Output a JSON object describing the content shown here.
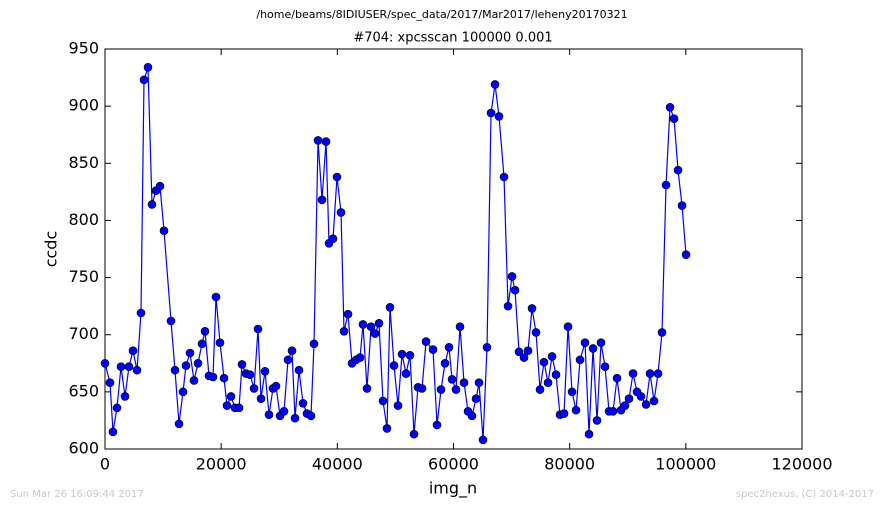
{
  "chart_data": {
    "type": "line",
    "title": "/home/beams/8IDIUSER/spec_data/2017/Mar2017/leheny20170321",
    "subtitle": "#704: xpcsscan 100000 0.001",
    "xlabel": "img_n",
    "ylabel": "ccdc",
    "color": "#0000ff",
    "x": [
      0,
      861,
      1377,
      2066,
      2755,
      3444,
      4132,
      4821,
      5510,
      6198,
      6715,
      7403,
      8092,
      8781,
      9470,
      10158,
      11364,
      12052,
      12741,
      13430,
      13946,
      14635,
      15324,
      16012,
      16701,
      17218,
      17906,
      18595,
      19112,
      19800,
      20489,
      21005,
      21694,
      22383,
      23072,
      23588,
      24277,
      24966,
      25654,
      26343,
      26860,
      27548,
      28237,
      28926,
      29442,
      30131,
      30820,
      31508,
      32197,
      32713,
      33402,
      34091,
      34779,
      35468,
      35985,
      36674,
      37362,
      38051,
      38567,
      39256,
      39945,
      40634,
      41150,
      41839,
      42528,
      43216,
      43905,
      44421,
      45110,
      45799,
      46488,
      47176,
      47865,
      48554,
      49070,
      49759,
      50448,
      51136,
      51825,
      52514,
      53202,
      53891,
      54580,
      55268,
      56474,
      57163,
      57851,
      58540,
      59229,
      59745,
      60434,
      61123,
      61811,
      62500,
      63189,
      63877,
      64394,
      65083,
      65771,
      66460,
      67149,
      67837,
      68698,
      69387,
      70076,
      70592,
      71281,
      72142,
      72831,
      73519,
      74208,
      74897,
      75585,
      76274,
      76963,
      77652,
      78340,
      79029,
      79718,
      80406,
      81095,
      81784,
      82645,
      83333,
      84022,
      84711,
      85399,
      86088,
      86777,
      87466,
      88154,
      88843,
      89532,
      90220,
      90909,
      91598,
      92287,
      93147,
      93836,
      94525,
      95213,
      95902,
      96591,
      97279,
      97968,
      98657,
      99346,
      100034
    ],
    "values": [
      675,
      658,
      615,
      636,
      672,
      646,
      672,
      686,
      669,
      719,
      923,
      934,
      814,
      826,
      830,
      791,
      712,
      669,
      622,
      650,
      673,
      684,
      660,
      675,
      692,
      703,
      664,
      663,
      733,
      693,
      662,
      638,
      646,
      636,
      636,
      674,
      666,
      665,
      653,
      705,
      644,
      668,
      630,
      653,
      655,
      629,
      633,
      678,
      686,
      627,
      669,
      640,
      631,
      629,
      692,
      870,
      818,
      869,
      780,
      784,
      838,
      807,
      703,
      718,
      675,
      678,
      680,
      709,
      653,
      707,
      701,
      710,
      642,
      618,
      724,
      673,
      638,
      683,
      666,
      682,
      613,
      654,
      653,
      694,
      687,
      621,
      652,
      675,
      689,
      661,
      652,
      707,
      658,
      633,
      629,
      644,
      658,
      608,
      689,
      894,
      919,
      891,
      838,
      725,
      751,
      739,
      685,
      680,
      686,
      723,
      702,
      652,
      676,
      658,
      681,
      665,
      630,
      631,
      707,
      650,
      634,
      678,
      693,
      613,
      688,
      625,
      693,
      672,
      633,
      633,
      662,
      634,
      638,
      644,
      666,
      650,
      646,
      639,
      666,
      642,
      666,
      702,
      831,
      899,
      889,
      844,
      813,
      770
    ],
    "xlim": [
      0,
      120000
    ],
    "xticks": [
      0,
      20000,
      40000,
      60000,
      80000,
      100000,
      120000
    ],
    "ylim": [
      600,
      950
    ],
    "yticks": [
      600,
      650,
      700,
      750,
      800,
      850,
      900,
      950
    ]
  },
  "footer": {
    "left": "Sun Mar 26 16:09:44 2017",
    "right": "spec2nexus, (C) 2014-2017"
  }
}
